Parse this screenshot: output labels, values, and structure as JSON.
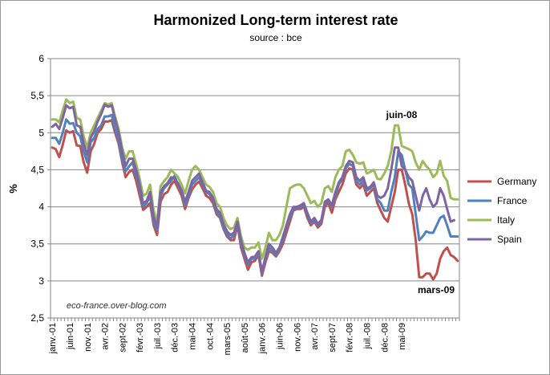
{
  "chart_data": {
    "type": "line",
    "title": "Harmonized Long-term interest rate",
    "subtitle": "source : bce",
    "xlabel": "",
    "ylabel": "%",
    "ylim": [
      2.5,
      6
    ],
    "yticks": [
      "2,5",
      "3",
      "3,5",
      "4",
      "4,5",
      "5",
      "5,5",
      "6"
    ],
    "grid": "horizontal",
    "legend_position": "right",
    "x_tick_labels": [
      "janv.-01",
      "juin-01",
      "nov.-01",
      "avr.-02",
      "sept-02",
      "févr.-03",
      "juil.-03",
      "déc.-03",
      "mai-04",
      "oct.-04",
      "mars-05",
      "août-05",
      "janv.-06",
      "juin-06",
      "nov.-06",
      "avr.-07",
      "sept-07",
      "févr.-08",
      "juil.-08",
      "déc.-08",
      "mai-09"
    ],
    "x_start": "2001-01",
    "annotations": [
      "juin-08",
      "mars-09"
    ],
    "watermark": "eco-france.over-blog.com",
    "series": [
      {
        "name": "Germany",
        "color": "#c0504d",
        "values": [
          4.8,
          4.78,
          4.67,
          4.84,
          5.03,
          5.0,
          5.02,
          4.83,
          4.82,
          4.6,
          4.46,
          4.75,
          4.85,
          5.0,
          5.05,
          5.15,
          5.15,
          5.17,
          5.0,
          4.85,
          4.6,
          4.4,
          4.47,
          4.5,
          4.35,
          4.15,
          3.96,
          4.0,
          4.05,
          3.75,
          3.62,
          4.07,
          4.17,
          4.2,
          4.3,
          4.35,
          4.25,
          4.15,
          3.97,
          4.12,
          4.23,
          4.3,
          4.34,
          4.25,
          4.15,
          4.12,
          4.05,
          3.9,
          3.85,
          3.7,
          3.6,
          3.55,
          3.55,
          3.75,
          3.45,
          3.3,
          3.15,
          3.25,
          3.27,
          3.35,
          3.07,
          3.25,
          3.4,
          3.38,
          3.33,
          3.4,
          3.5,
          3.65,
          3.8,
          3.95,
          3.97,
          3.97,
          4.0,
          3.85,
          3.75,
          3.8,
          3.72,
          3.77,
          4.0,
          4.05,
          3.92,
          4.1,
          4.2,
          4.3,
          4.45,
          4.52,
          4.5,
          4.3,
          4.25,
          4.3,
          4.15,
          4.2,
          4.25,
          4.05,
          3.95,
          3.85,
          3.8,
          4.0,
          4.2,
          4.5,
          4.5,
          4.3,
          4.05,
          3.9,
          3.55,
          3.05,
          3.05,
          3.1,
          3.1,
          3.02,
          3.1,
          3.3,
          3.4,
          3.45,
          3.35,
          3.32,
          3.27
        ]
      },
      {
        "name": "France",
        "color": "#4f81bd",
        "values": [
          4.93,
          4.93,
          4.85,
          5.0,
          5.18,
          5.12,
          5.13,
          5.0,
          4.95,
          4.75,
          4.6,
          4.87,
          4.93,
          5.05,
          5.1,
          5.22,
          5.22,
          5.24,
          5.05,
          4.9,
          4.65,
          4.48,
          4.55,
          4.6,
          4.42,
          4.25,
          4.0,
          4.05,
          4.15,
          3.8,
          3.68,
          4.15,
          4.25,
          4.3,
          4.35,
          4.42,
          4.3,
          4.2,
          4.02,
          4.15,
          4.3,
          4.35,
          4.4,
          4.3,
          4.2,
          4.17,
          4.1,
          3.93,
          3.87,
          3.72,
          3.63,
          3.57,
          3.62,
          3.77,
          3.5,
          3.35,
          3.22,
          3.3,
          3.3,
          3.38,
          3.1,
          3.3,
          3.45,
          3.4,
          3.35,
          3.43,
          3.55,
          3.72,
          3.85,
          3.97,
          3.98,
          4.0,
          4.02,
          3.9,
          3.78,
          3.82,
          3.75,
          3.8,
          4.05,
          4.08,
          4.0,
          4.15,
          4.3,
          4.38,
          4.52,
          4.58,
          4.55,
          4.35,
          4.3,
          4.35,
          4.22,
          4.25,
          4.3,
          4.1,
          4.05,
          3.95,
          3.95,
          4.2,
          4.4,
          4.75,
          4.7,
          4.5,
          4.3,
          4.25,
          3.9,
          3.55,
          3.6,
          3.67,
          3.65,
          3.65,
          3.75,
          3.85,
          3.88,
          3.75,
          3.6,
          3.6,
          3.6
        ]
      },
      {
        "name": "Italy",
        "color": "#9bbb59",
        "values": [
          5.18,
          5.18,
          5.14,
          5.3,
          5.45,
          5.4,
          5.42,
          5.2,
          5.18,
          4.95,
          4.8,
          5.0,
          5.1,
          5.2,
          5.3,
          5.4,
          5.38,
          5.4,
          5.22,
          5.05,
          4.8,
          4.65,
          4.75,
          4.75,
          4.58,
          4.38,
          4.15,
          4.18,
          4.3,
          3.95,
          3.8,
          4.28,
          4.35,
          4.4,
          4.5,
          4.45,
          4.4,
          4.3,
          4.18,
          4.35,
          4.5,
          4.55,
          4.5,
          4.4,
          4.3,
          4.27,
          4.2,
          4.05,
          4.0,
          3.85,
          3.75,
          3.7,
          3.72,
          3.85,
          3.6,
          3.45,
          3.42,
          3.45,
          3.45,
          3.52,
          3.3,
          3.45,
          3.65,
          3.55,
          3.55,
          3.62,
          3.75,
          4.0,
          4.25,
          4.28,
          4.3,
          4.3,
          4.25,
          4.15,
          4.05,
          4.08,
          4.0,
          4.05,
          4.25,
          4.28,
          4.2,
          4.4,
          4.5,
          4.55,
          4.75,
          4.77,
          4.7,
          4.6,
          4.58,
          4.6,
          4.45,
          4.47,
          4.5,
          4.38,
          4.37,
          4.45,
          4.55,
          4.75,
          5.1,
          5.1,
          4.82,
          4.8,
          4.78,
          4.75,
          4.6,
          4.5,
          4.62,
          4.55,
          4.5,
          4.4,
          4.45,
          4.62,
          4.42,
          4.35,
          4.12,
          4.1,
          4.1
        ]
      },
      {
        "name": "Spain",
        "color": "#8064a2",
        "values": [
          5.08,
          5.12,
          5.05,
          5.2,
          5.37,
          5.33,
          5.35,
          5.1,
          5.08,
          4.85,
          4.7,
          4.93,
          5.02,
          5.15,
          5.25,
          5.38,
          5.35,
          5.37,
          5.18,
          5.0,
          4.75,
          4.55,
          4.65,
          4.65,
          4.5,
          4.3,
          4.05,
          4.08,
          4.2,
          3.87,
          3.72,
          4.2,
          4.28,
          4.32,
          4.4,
          4.38,
          4.32,
          4.22,
          4.07,
          4.2,
          4.35,
          4.4,
          4.45,
          4.33,
          4.22,
          4.2,
          4.12,
          3.97,
          3.92,
          3.77,
          3.67,
          3.62,
          3.65,
          3.8,
          3.55,
          3.38,
          3.25,
          3.32,
          3.33,
          3.4,
          3.12,
          3.33,
          3.5,
          3.45,
          3.38,
          3.45,
          3.6,
          3.75,
          3.9,
          4.0,
          4.0,
          4.02,
          4.05,
          3.92,
          3.8,
          3.85,
          3.77,
          3.82,
          4.07,
          4.1,
          4.02,
          4.2,
          4.33,
          4.4,
          4.55,
          4.62,
          4.6,
          4.4,
          4.35,
          4.4,
          4.25,
          4.27,
          4.33,
          4.15,
          4.12,
          4.15,
          4.25,
          4.5,
          4.8,
          4.8,
          4.55,
          4.5,
          4.4,
          4.35,
          4.15,
          3.95,
          4.15,
          4.25,
          4.1,
          4.0,
          4.05,
          4.25,
          4.15,
          3.97,
          3.8,
          3.82
        ]
      }
    ]
  }
}
